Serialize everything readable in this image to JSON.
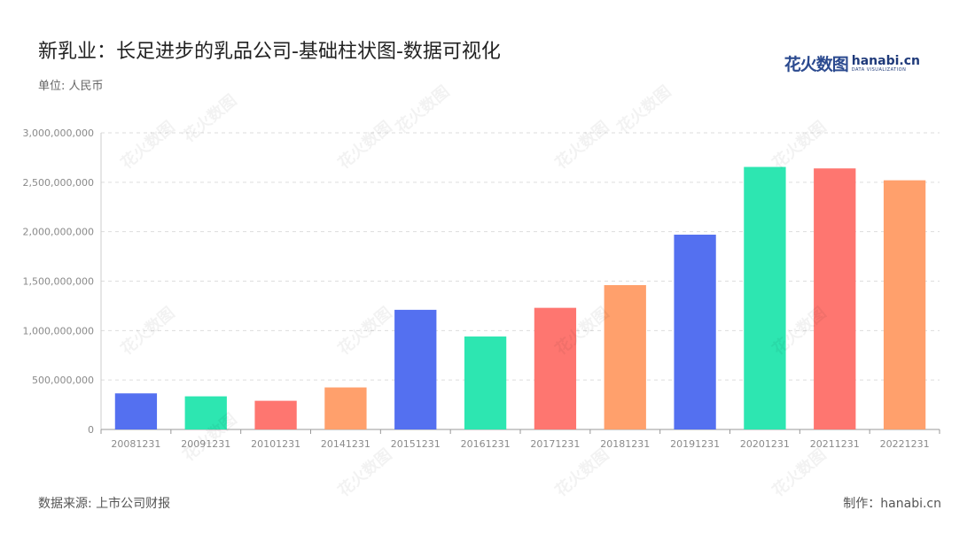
{
  "header": {
    "title": "新乳业：长足进步的乳品公司-基础柱状图-数据可视化",
    "unit": "单位: 人民币"
  },
  "logo": {
    "cn": "花火数图",
    "en": "hanabi.cn",
    "sub": "DATA VISUALIZATION"
  },
  "footer": {
    "source": "数据来源: 上市公司财报",
    "maker": "制作：hanabi.cn"
  },
  "colors": {
    "palette": [
      "#5470f0",
      "#2de6b1",
      "#fe7670",
      "#ffa06c"
    ],
    "grid": "#dddddd",
    "axis": "#999999"
  },
  "chart_data": {
    "type": "bar",
    "title": "新乳业：长足进步的乳品公司-基础柱状图-数据可视化",
    "xlabel": "",
    "ylabel": "",
    "categories": [
      "20081231",
      "20091231",
      "20101231",
      "20141231",
      "20151231",
      "20161231",
      "20171231",
      "20181231",
      "20191231",
      "20201231",
      "20211231",
      "20221231"
    ],
    "values": [
      365000000,
      335000000,
      290000000,
      425000000,
      1210000000,
      940000000,
      1230000000,
      1460000000,
      1970000000,
      2655000000,
      2640000000,
      2520000000
    ],
    "ylim": [
      0,
      3000000000
    ],
    "yticks": [
      0,
      500000000,
      1000000000,
      1500000000,
      2000000000,
      2500000000,
      3000000000
    ],
    "ytick_labels": [
      "0",
      "500,000,000",
      "1,000,000,000",
      "1,500,000,000",
      "2,000,000,000",
      "2,500,000,000",
      "3,000,000,000"
    ],
    "grid": true,
    "legend": "none"
  }
}
